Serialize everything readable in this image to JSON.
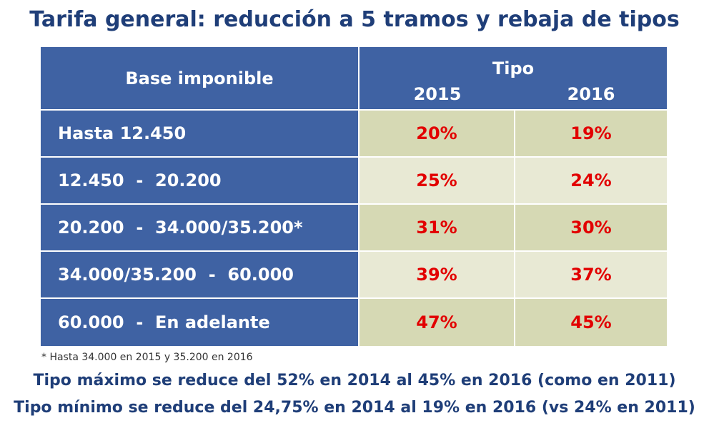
{
  "title": "Tarifa general: reducción a 5 tramos y rebaja de tipos",
  "table": {
    "header": {
      "base_label": "Base imponible",
      "tipo_label": "Tipo",
      "years": [
        "2015",
        "2016"
      ]
    },
    "rows": [
      {
        "base": "Hasta 12.450",
        "y2015": "20%",
        "y2016": "19%"
      },
      {
        "base": "12.450  -  20.200",
        "y2015": "25%",
        "y2016": "24%"
      },
      {
        "base": "20.200  -  34.000/35.200*",
        "y2015": "31%",
        "y2016": "30%"
      },
      {
        "base": "34.000/35.200  -  60.000",
        "y2015": "39%",
        "y2016": "37%"
      },
      {
        "base": "60.000  -  En adelante",
        "y2015": "47%",
        "y2016": "45%"
      }
    ]
  },
  "footnote": "* Hasta 34.000 en 2015 y 35.200 en 2016",
  "summary": [
    "Tipo máximo se reduce del 52% en 2014 al 45% en 2016 (como en 2011)",
    "Tipo mínimo se reduce del 24,75% en 2014 al 19% en 2016 (vs 24% en 2011)"
  ],
  "colors": {
    "title": "#1f3e78",
    "header_bg": "#3f62a3",
    "value_text": "#e20000",
    "value_bg_a": "#d6d9b4",
    "value_bg_b": "#e8e9d4"
  }
}
